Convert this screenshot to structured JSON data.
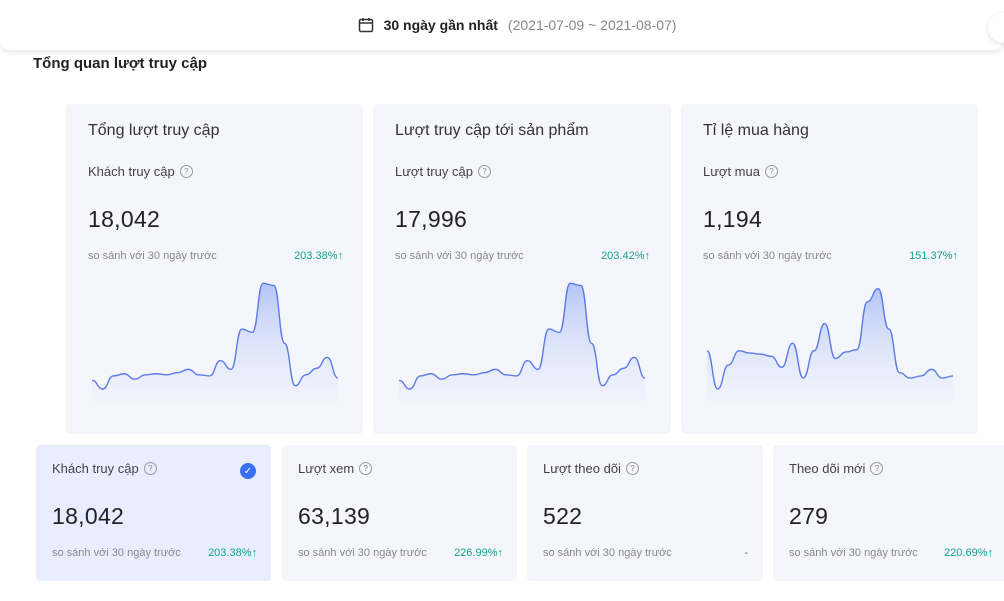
{
  "header": {
    "date_label": "30 ngày gần nhất",
    "date_range": "(2021-07-09 ~ 2021-08-07)"
  },
  "section_title": "Tổng quan lượt truy cập",
  "top_cards": [
    {
      "title": "Tổng lượt truy cập",
      "metric_label": "Khách truy cập",
      "value": "18,042",
      "compare_text": "so sánh với 30 ngày trước",
      "compare_pct": "203.38%",
      "trend": "up",
      "spark": [
        0.08,
        0.0,
        0.12,
        0.14,
        0.09,
        0.13,
        0.14,
        0.13,
        0.15,
        0.18,
        0.13,
        0.12,
        0.26,
        0.18,
        0.55,
        0.52,
        0.97,
        0.95,
        0.42,
        0.03,
        0.13,
        0.19,
        0.29,
        0.1
      ]
    },
    {
      "title": "Lượt truy cập tới sản phẩm",
      "metric_label": "Lượt truy cập",
      "value": "17,996",
      "compare_text": "so sánh với 30 ngày trước",
      "compare_pct": "203.42%",
      "trend": "up",
      "spark": [
        0.08,
        0.0,
        0.12,
        0.14,
        0.09,
        0.13,
        0.14,
        0.13,
        0.15,
        0.18,
        0.13,
        0.12,
        0.26,
        0.18,
        0.55,
        0.52,
        0.97,
        0.95,
        0.42,
        0.03,
        0.13,
        0.19,
        0.29,
        0.1
      ]
    },
    {
      "title": "Tỉ lệ mua hàng",
      "metric_label": "Lượt mua",
      "value": "1,194",
      "compare_text": "so sánh với 30 ngày trước",
      "compare_pct": "151.37%",
      "trend": "up",
      "spark": [
        0.35,
        0.0,
        0.22,
        0.35,
        0.33,
        0.32,
        0.3,
        0.2,
        0.42,
        0.1,
        0.35,
        0.6,
        0.28,
        0.34,
        0.36,
        0.8,
        0.92,
        0.55,
        0.15,
        0.1,
        0.12,
        0.18,
        0.1,
        0.12
      ]
    }
  ],
  "bottom_cards": [
    {
      "label": "Khách truy cập",
      "value": "18,042",
      "compare_text": "so sánh với 30 ngày trước",
      "compare_pct": "203.38%",
      "trend": "up",
      "selected": true
    },
    {
      "label": "Lượt xem",
      "value": "63,139",
      "compare_text": "so sánh với 30 ngày trước",
      "compare_pct": "226.99%",
      "trend": "up",
      "selected": false
    },
    {
      "label": "Lượt theo dõi",
      "value": "522",
      "compare_text": "so sánh với 30 ngày trước",
      "compare_pct": "-",
      "trend": "none",
      "selected": false
    },
    {
      "label": "Theo dõi mới",
      "value": "279",
      "compare_text": "so sánh với 30 ngày trước",
      "compare_pct": "220.69%",
      "trend": "up",
      "selected": false
    }
  ],
  "colors": {
    "accent": "#3b6ef5",
    "positive": "#14a08a",
    "line": "#5b7be8"
  },
  "icons": {
    "calendar": "calendar-icon",
    "help": "question-icon",
    "check": "check-circle-icon",
    "arrow": "arrow-up-icon"
  }
}
